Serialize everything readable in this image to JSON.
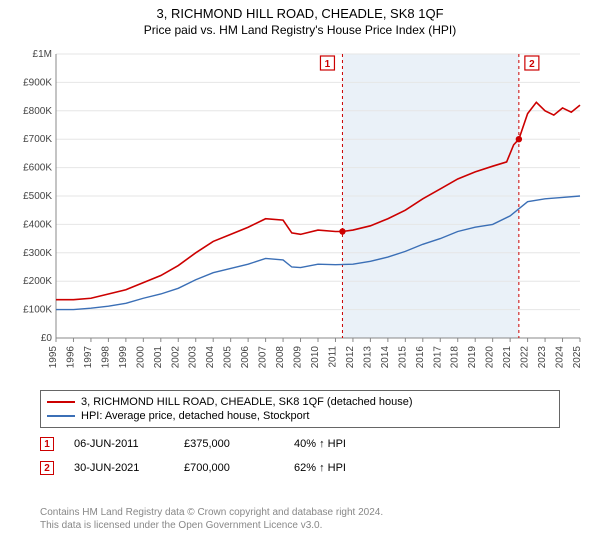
{
  "header": {
    "title": "3, RICHMOND HILL ROAD, CHEADLE, SK8 1QF",
    "subtitle": "Price paid vs. HM Land Registry's House Price Index (HPI)"
  },
  "chart": {
    "type": "line",
    "background_color": "#ffffff",
    "shaded_band": {
      "x_start": 2011.4,
      "x_end": 2021.5,
      "fill": "#eaf1f8"
    },
    "axes": {
      "x": {
        "min": 1995,
        "max": 2025,
        "tick_step": 1,
        "label_fontsize": 10,
        "tick_color": "#444"
      },
      "y": {
        "min": 0,
        "max": 1000000,
        "tick_step": 100000,
        "prefix": "£",
        "labels": [
          "£0",
          "£100K",
          "£200K",
          "£300K",
          "£400K",
          "£500K",
          "£600K",
          "£700K",
          "£800K",
          "£900K",
          "£1M"
        ],
        "label_fontsize": 10,
        "tick_color": "#444"
      }
    },
    "grid_color": "#e6e6e6",
    "axis_line_color": "#888888",
    "series": [
      {
        "id": "property",
        "color": "#cc0000",
        "width": 1.6,
        "points": [
          [
            1995,
            135000
          ],
          [
            1996,
            135000
          ],
          [
            1997,
            140000
          ],
          [
            1998,
            155000
          ],
          [
            1999,
            170000
          ],
          [
            2000,
            195000
          ],
          [
            2001,
            220000
          ],
          [
            2002,
            255000
          ],
          [
            2003,
            300000
          ],
          [
            2004,
            340000
          ],
          [
            2005,
            365000
          ],
          [
            2006,
            390000
          ],
          [
            2007,
            420000
          ],
          [
            2008,
            415000
          ],
          [
            2008.5,
            370000
          ],
          [
            2009,
            365000
          ],
          [
            2010,
            380000
          ],
          [
            2011,
            375000
          ],
          [
            2011.4,
            375000
          ],
          [
            2012,
            380000
          ],
          [
            2013,
            395000
          ],
          [
            2014,
            420000
          ],
          [
            2015,
            450000
          ],
          [
            2016,
            490000
          ],
          [
            2017,
            525000
          ],
          [
            2018,
            560000
          ],
          [
            2019,
            585000
          ],
          [
            2020,
            605000
          ],
          [
            2020.8,
            620000
          ],
          [
            2021.2,
            680000
          ],
          [
            2021.5,
            700000
          ],
          [
            2022,
            790000
          ],
          [
            2022.5,
            830000
          ],
          [
            2023,
            800000
          ],
          [
            2023.5,
            785000
          ],
          [
            2024,
            810000
          ],
          [
            2024.5,
            795000
          ],
          [
            2025,
            820000
          ]
        ]
      },
      {
        "id": "hpi",
        "color": "#3b6fb6",
        "width": 1.4,
        "points": [
          [
            1995,
            100000
          ],
          [
            1996,
            100000
          ],
          [
            1997,
            105000
          ],
          [
            1998,
            112000
          ],
          [
            1999,
            122000
          ],
          [
            2000,
            140000
          ],
          [
            2001,
            155000
          ],
          [
            2002,
            175000
          ],
          [
            2003,
            205000
          ],
          [
            2004,
            230000
          ],
          [
            2005,
            245000
          ],
          [
            2006,
            260000
          ],
          [
            2007,
            280000
          ],
          [
            2008,
            275000
          ],
          [
            2008.5,
            250000
          ],
          [
            2009,
            248000
          ],
          [
            2010,
            260000
          ],
          [
            2011,
            258000
          ],
          [
            2012,
            260000
          ],
          [
            2013,
            270000
          ],
          [
            2014,
            285000
          ],
          [
            2015,
            305000
          ],
          [
            2016,
            330000
          ],
          [
            2017,
            350000
          ],
          [
            2018,
            375000
          ],
          [
            2019,
            390000
          ],
          [
            2020,
            400000
          ],
          [
            2021,
            430000
          ],
          [
            2022,
            480000
          ],
          [
            2023,
            490000
          ],
          [
            2024,
            495000
          ],
          [
            2025,
            500000
          ]
        ]
      }
    ],
    "sale_markers": [
      {
        "n": "1",
        "x": 2011.4,
        "y": 375000,
        "line_color": "#cc0000",
        "box_border": "#cc0000",
        "box_text": "#cc0000",
        "box_x_offset": -22
      },
      {
        "n": "2",
        "x": 2021.5,
        "y": 700000,
        "line_color": "#cc0000",
        "box_border": "#cc0000",
        "box_text": "#cc0000",
        "box_x_offset": 6
      }
    ],
    "marker_dot_color": "#cc0000",
    "marker_dash": "3,3"
  },
  "legend": {
    "items": [
      {
        "color": "#cc0000",
        "label": "3, RICHMOND HILL ROAD, CHEADLE, SK8 1QF (detached house)"
      },
      {
        "color": "#3b6fb6",
        "label": "HPI: Average price, detached house, Stockport"
      }
    ]
  },
  "sales": [
    {
      "n": "1",
      "border": "#cc0000",
      "text_color": "#cc0000",
      "date": "06-JUN-2011",
      "price": "£375,000",
      "delta": "40% ↑ HPI"
    },
    {
      "n": "2",
      "border": "#cc0000",
      "text_color": "#cc0000",
      "date": "30-JUN-2021",
      "price": "£700,000",
      "delta": "62% ↑ HPI"
    }
  ],
  "footer": {
    "line1": "Contains HM Land Registry data © Crown copyright and database right 2024.",
    "line2": "This data is licensed under the Open Government Licence v3.0."
  }
}
